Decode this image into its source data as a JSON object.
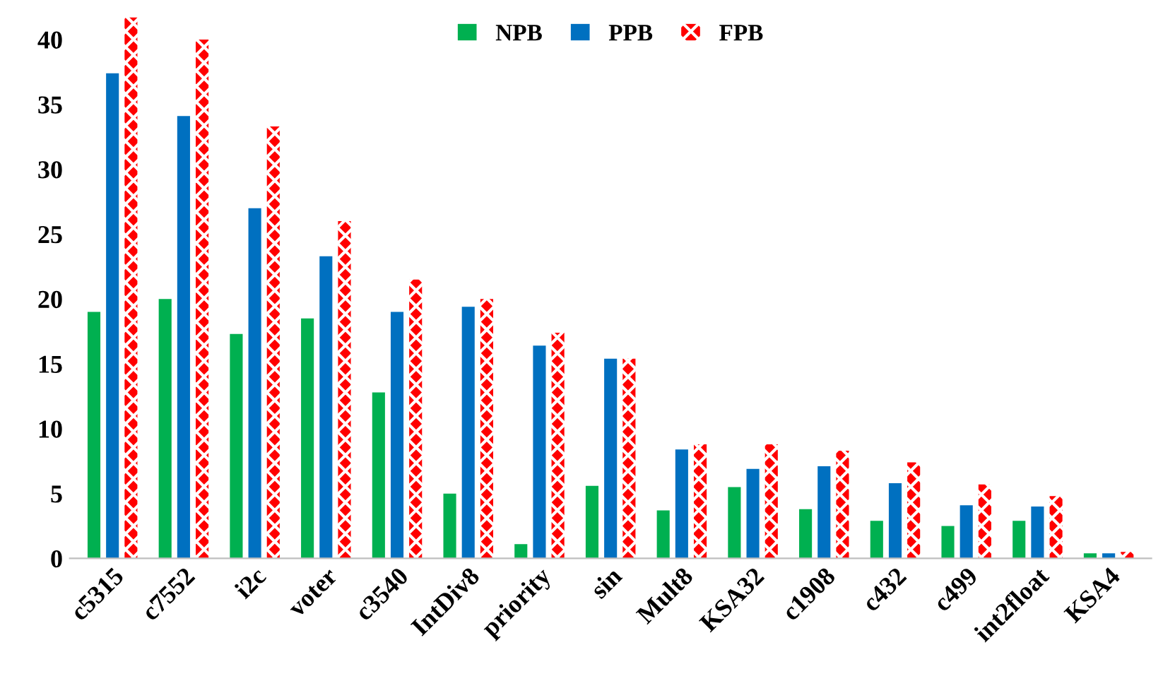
{
  "chart_data": {
    "type": "bar",
    "categories": [
      "c5315",
      "c7552",
      "i2c",
      "voter",
      "c3540",
      "IntDiv8",
      "priority",
      "sin",
      "Mult8",
      "KSA32",
      "c1908",
      "c432",
      "c499",
      "int2float",
      "KSA4"
    ],
    "series": [
      {
        "name": "NPB",
        "color": "#00b050",
        "values": [
          19,
          20,
          17.3,
          18.5,
          12.8,
          5,
          1.1,
          5.6,
          3.7,
          5.5,
          3.8,
          2.9,
          2.5,
          2.9,
          0.4
        ]
      },
      {
        "name": "PPB",
        "color": "#0070c0",
        "values": [
          37.4,
          34.1,
          27,
          23.3,
          19,
          19.4,
          16.4,
          15.4,
          8.4,
          6.9,
          7.1,
          5.8,
          4.1,
          4,
          0.4
        ]
      },
      {
        "name": "FPB",
        "color": "#ff0000",
        "values": [
          41.7,
          40,
          33.3,
          26,
          21.5,
          20,
          17.4,
          15.4,
          8.8,
          8.8,
          8.3,
          7.4,
          5.7,
          4.8,
          0.5
        ]
      }
    ],
    "ylim": [
      0,
      42
    ],
    "yticks": [
      0,
      5,
      10,
      15,
      20,
      25,
      30,
      35,
      40
    ],
    "grid": false,
    "legend": "top"
  }
}
